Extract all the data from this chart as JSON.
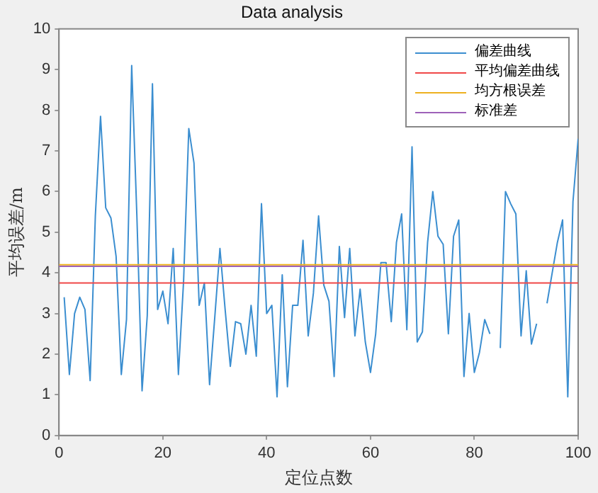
{
  "chart_data": {
    "type": "line",
    "title": "Data analysis",
    "xlabel": "定位点数",
    "ylabel": "平均误差/m",
    "xlim": [
      0,
      100
    ],
    "xticks": [
      0,
      20,
      40,
      60,
      80,
      100
    ],
    "ylim": [
      0,
      10
    ],
    "yticks": [
      0,
      1,
      2,
      3,
      4,
      5,
      6,
      7,
      8,
      9,
      10
    ],
    "grid": false,
    "legend": "top right",
    "marker": "none",
    "line_style": "solid",
    "series": [
      {
        "name": "偏差曲线",
        "color": "#3b8ed0",
        "x": [
          1,
          2,
          3,
          4,
          5,
          6,
          7,
          8,
          9,
          10,
          11,
          12,
          13,
          14,
          15,
          16,
          17,
          18,
          19,
          20,
          21,
          22,
          23,
          24,
          25,
          26,
          27,
          28,
          29,
          30,
          31,
          32,
          33,
          34,
          35,
          36,
          37,
          38,
          39,
          40,
          41,
          42,
          43,
          44,
          45,
          46,
          47,
          48,
          49,
          50,
          51,
          52,
          53,
          54,
          55,
          56,
          57,
          58,
          59,
          60,
          61,
          62,
          63,
          64,
          65,
          66,
          67,
          68,
          69,
          70,
          71,
          72,
          73,
          74,
          75,
          76,
          77,
          78,
          79,
          80,
          81,
          82,
          83,
          84,
          85,
          86,
          87,
          88,
          89,
          90,
          91,
          92,
          93,
          94,
          95,
          96,
          97,
          98,
          99,
          100
        ],
        "values": [
          3.4,
          1.5,
          3.0,
          3.4,
          3.1,
          1.35,
          5.4,
          7.85,
          5.6,
          5.35,
          4.4,
          1.5,
          2.85,
          9.1,
          5.4,
          1.1,
          2.95,
          8.65,
          3.1,
          3.55,
          2.75,
          4.6,
          1.5,
          3.8,
          7.55,
          6.7,
          3.2,
          3.75,
          1.25,
          2.9,
          4.6,
          3.1,
          1.7,
          2.8,
          2.75,
          2.0,
          3.2,
          1.95,
          5.7,
          3.0,
          3.2,
          0.95,
          3.95,
          1.2,
          3.2,
          3.2,
          4.8,
          2.45,
          3.5,
          5.4,
          3.7,
          3.3,
          1.45,
          4.65,
          2.9,
          4.6,
          2.45,
          3.6,
          2.3,
          1.55,
          2.5,
          4.25,
          4.25,
          2.8,
          4.75,
          5.45,
          2.6,
          7.1,
          2.3,
          2.55,
          4.75,
          6.0,
          4.9,
          4.7,
          2.5,
          4.9,
          5.3,
          1.45,
          3.0,
          1.55,
          2.05,
          2.85,
          2.5,
          null,
          2.15,
          6.0,
          5.7,
          5.45,
          2.45,
          4.05,
          2.25,
          2.75,
          null,
          3.25,
          4.0,
          4.75,
          5.3,
          0.95,
          5.75,
          7.3
        ]
      },
      {
        "name": "平均偏差曲线",
        "color": "#f04848",
        "x": [
          0,
          100
        ],
        "values": [
          3.75,
          3.75
        ]
      },
      {
        "name": "均方根误差",
        "color": "#edb120",
        "x": [
          0,
          100
        ],
        "values": [
          4.2,
          4.2
        ]
      },
      {
        "name": "标准差",
        "color": "#9e62b8",
        "x": [
          0,
          100
        ],
        "values": [
          4.16,
          4.16
        ]
      }
    ]
  }
}
